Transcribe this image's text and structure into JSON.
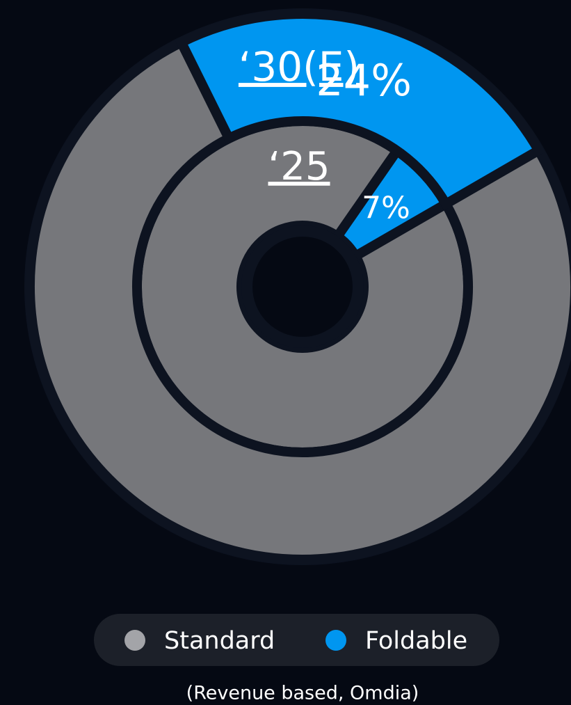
{
  "chart_data": {
    "type": "pie",
    "categories": [
      "Standard",
      "Foldable"
    ],
    "colors": [
      "#76777b",
      "#0096f0"
    ],
    "legend_colors": [
      "#a3a4a8",
      "#0096f0"
    ],
    "series": [
      {
        "name": "‘25",
        "values": [
          93,
          7
        ],
        "value_labels": [
          null,
          "7%"
        ]
      },
      {
        "name": "‘30(E)",
        "values": [
          76,
          24
        ],
        "value_labels": [
          null,
          "24%"
        ]
      }
    ],
    "source": "(Revenue based, Omdia)"
  }
}
